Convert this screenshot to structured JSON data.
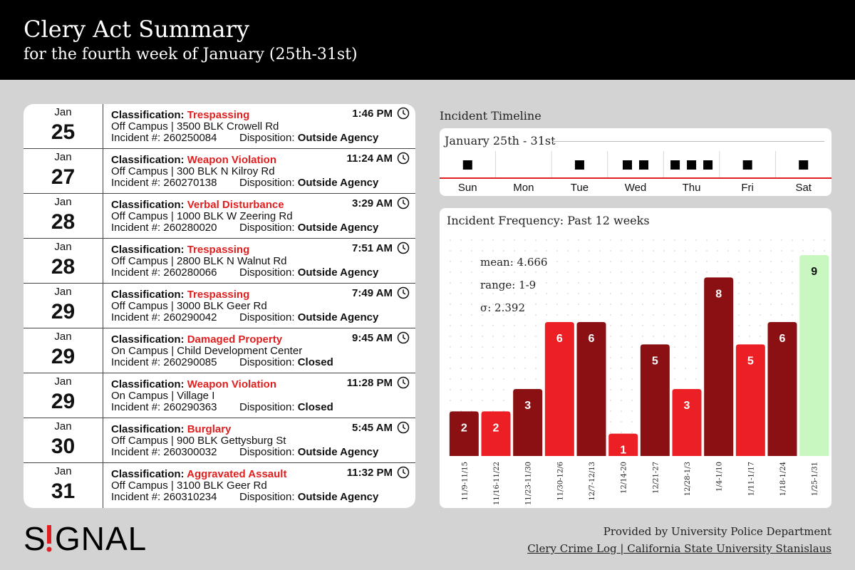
{
  "header": {
    "title": "Clery Act Summary",
    "subtitle": "for the fourth week of January (25th-31st)"
  },
  "log": {
    "classification_label": "Classification:",
    "incident_label": "Incident #:",
    "disposition_label": "Disposition:",
    "entries": [
      {
        "month": "Jan",
        "day": "25",
        "classification": "Trespassing",
        "time": "1:46 PM",
        "location": "Off Campus | 3500 BLK Crowell Rd",
        "incident": "260250084",
        "disposition": "Outside Agency"
      },
      {
        "month": "Jan",
        "day": "27",
        "classification": "Weapon Violation",
        "time": "11:24 AM",
        "location": "Off Campus | 300 BLK N Kilroy Rd",
        "incident": "260270138",
        "disposition": "Outside Agency"
      },
      {
        "month": "Jan",
        "day": "28",
        "classification": "Verbal Disturbance",
        "time": "3:29 AM",
        "location": "Off Campus | 1000 BLK W Zeering Rd",
        "incident": "260280020",
        "disposition": "Outside Agency"
      },
      {
        "month": "Jan",
        "day": "28",
        "classification": "Trespassing",
        "time": "7:51 AM",
        "location": "Off Campus | 2800 BLK N Walnut Rd",
        "incident": "260280066",
        "disposition": "Outside Agency"
      },
      {
        "month": "Jan",
        "day": "29",
        "classification": "Trespassing",
        "time": "7:49 AM",
        "location": "Off Campus | 3000 BLK Geer Rd",
        "incident": "260290042",
        "disposition": "Outside Agency"
      },
      {
        "month": "Jan",
        "day": "29",
        "classification": "Damaged Property",
        "time": "9:45 AM",
        "location": "On Campus | Child Development Center",
        "incident": "260290085",
        "disposition": "Closed"
      },
      {
        "month": "Jan",
        "day": "29",
        "classification": "Weapon Violation",
        "time": "11:28 PM",
        "location": "On Campus | Village I",
        "incident": "260290363",
        "disposition": "Closed"
      },
      {
        "month": "Jan",
        "day": "30",
        "classification": "Burglary",
        "time": "5:45 AM",
        "location": "Off Campus | 900 BLK Gettysburg St",
        "incident": "260300032",
        "disposition": "Outside Agency"
      },
      {
        "month": "Jan",
        "day": "31",
        "classification": "Aggravated Assault",
        "time": "11:32 PM",
        "location": "Off Campus | 3100 BLK Geer Rd",
        "incident": "260310234",
        "disposition": "Outside Agency"
      }
    ]
  },
  "timeline": {
    "heading": "Incident Timeline",
    "range_label": "January 25th - 31st",
    "days": [
      "Sun",
      "Mon",
      "Tue",
      "Wed",
      "Thu",
      "Fri",
      "Sat"
    ],
    "counts": [
      1,
      0,
      1,
      2,
      3,
      1,
      1
    ],
    "marker_color": "#000000",
    "line_color": "#e02020"
  },
  "chart_data": {
    "type": "bar",
    "title": "Incident Frequency: Past 12 weeks",
    "categories": [
      "11/9-11/15",
      "11/16-11/22",
      "11/23-11/30",
      "11/30-12/6",
      "12/7-12/13",
      "12/14-20",
      "12/21-27",
      "12/28-1/3",
      "1/4-1/10",
      "1/11-1/17",
      "1/18-1/24",
      "1/25-1/31"
    ],
    "values": [
      2,
      2,
      3,
      6,
      6,
      1,
      5,
      3,
      8,
      5,
      6,
      9
    ],
    "bar_colors": [
      "#8b1014",
      "#ec1f24",
      "#8b1014",
      "#ec1f24",
      "#8b1014",
      "#ec1f24",
      "#8b1014",
      "#ec1f24",
      "#8b1014",
      "#ec1f24",
      "#8b1014",
      "#c9f7c0"
    ],
    "ylim": [
      0,
      9
    ],
    "grid": "dotted",
    "stats": {
      "mean": "mean: 4.666",
      "range": "range: 1-9",
      "sigma": "σ: 2.392"
    },
    "xlabel": "",
    "ylabel": ""
  },
  "footer": {
    "logo_text": "SIGNAL",
    "credit_line1": "Provided by University Police Department",
    "credit_line2": "Clery Crime Log | California State University Stanislaus"
  }
}
